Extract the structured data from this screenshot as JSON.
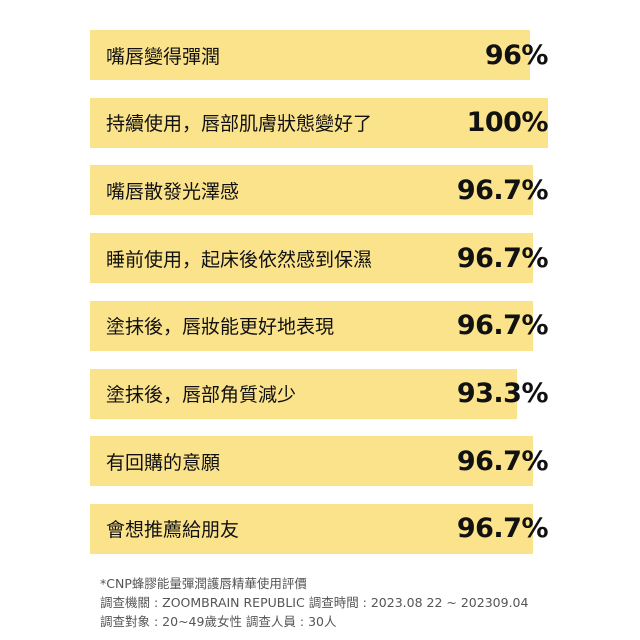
{
  "chart_data": {
    "type": "bar",
    "orientation": "horizontal",
    "categories": [
      "嘴唇變得彈潤",
      "持續使用，唇部肌膚狀態變好了",
      "嘴唇散發光澤感",
      "睡前使用，起床後依然感到保濕",
      "塗抹後，唇妝能更好地表現",
      "塗抹後，唇部角質減少",
      "有回購的意願",
      "會想推薦給朋友"
    ],
    "values": [
      96,
      100,
      96.7,
      96.7,
      96.7,
      93.3,
      96.7,
      96.7
    ],
    "value_labels": [
      "96%",
      "100%",
      "96.7%",
      "96.7%",
      "96.7%",
      "93.3%",
      "96.7%",
      "96.7%"
    ],
    "xlim": [
      0,
      100
    ],
    "unit": "%",
    "grid": false,
    "bar_color": "#fbe38c"
  },
  "footnote": {
    "line1": "*CNP蜂膠能量彈潤護唇精華使用評價",
    "line2": "調查機關 : ZOOMBRAIN REPUBLIC   調查時間 : 2023.08 22 ~ 202309.04",
    "line3": "調查對象 : 20~49歲女性    調查人員 : 30人"
  }
}
